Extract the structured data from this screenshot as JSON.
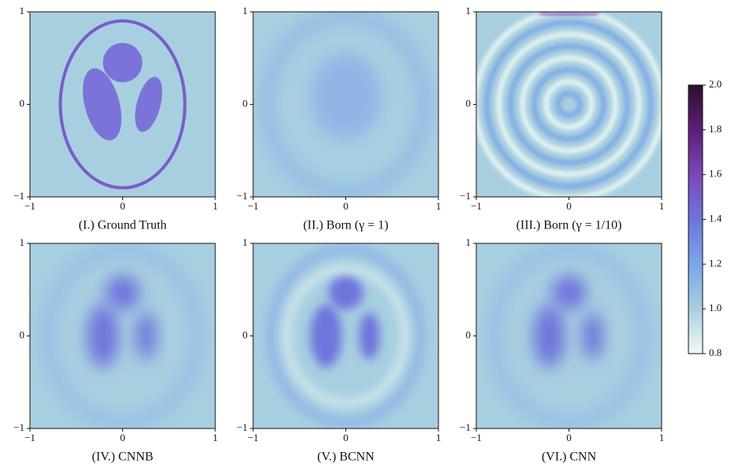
{
  "chart_data": [
    {
      "type": "heatmap",
      "title": "(I.) Ground Truth",
      "xlim": [
        -1,
        1
      ],
      "ylim": [
        -1,
        1
      ],
      "xticks": [
        {
          "value": -1,
          "label": "−1"
        },
        0,
        1
      ],
      "yticks": [
        {
          "value": -1,
          "label": "−1"
        },
        0,
        1
      ]
    },
    {
      "type": "heatmap",
      "title": "(II.) Born (γ = 1)",
      "xlim": [
        -1,
        1
      ],
      "ylim": [
        -1,
        1
      ],
      "xticks": [
        {
          "value": -1,
          "label": "−1"
        },
        0,
        1
      ],
      "yticks": [
        {
          "value": -1,
          "label": "−1"
        },
        0,
        1
      ]
    },
    {
      "type": "heatmap",
      "title": "(III.) Born (γ = 1/10)",
      "xlim": [
        -1,
        1
      ],
      "ylim": [
        -1,
        1
      ],
      "xticks": [
        {
          "value": -1,
          "label": "−1"
        },
        0,
        1
      ],
      "yticks": [
        {
          "value": -1,
          "label": "−1"
        },
        0,
        1
      ]
    },
    {
      "type": "heatmap",
      "title": "(IV.) CNNB",
      "xlim": [
        -1,
        1
      ],
      "ylim": [
        -1,
        1
      ],
      "xticks": [
        {
          "value": -1,
          "label": "−1"
        },
        0,
        1
      ],
      "yticks": [
        {
          "value": -1,
          "label": "−1"
        },
        0,
        1
      ]
    },
    {
      "type": "heatmap",
      "title": "(V.) BCNN",
      "xlim": [
        -1,
        1
      ],
      "ylim": [
        -1,
        1
      ],
      "xticks": [
        {
          "value": -1,
          "label": "−1"
        },
        0,
        1
      ],
      "yticks": [
        {
          "value": -1,
          "label": "−1"
        },
        0,
        1
      ]
    },
    {
      "type": "heatmap",
      "title": "(VI.) CNN",
      "xlim": [
        -1,
        1
      ],
      "ylim": [
        -1,
        1
      ],
      "xticks": [
        {
          "value": -1,
          "label": "−1"
        },
        0,
        1
      ],
      "yticks": [
        {
          "value": -1,
          "label": "−1"
        },
        0,
        1
      ]
    },
    {
      "type": "colorbar",
      "lim": [
        0.8,
        2.0
      ],
      "ticks": [
        0.8,
        {
          "value": 1,
          "label": "1.0"
        },
        1.2,
        1.4,
        1.6,
        1.8,
        {
          "value": 2,
          "label": "2.0"
        }
      ],
      "colormap": [
        "#f2f9f6",
        "#a8cfe0",
        "#7aa6e6",
        "#6f74dc",
        "#7b47b8",
        "#5c1f78",
        "#2e0e2c"
      ]
    }
  ]
}
